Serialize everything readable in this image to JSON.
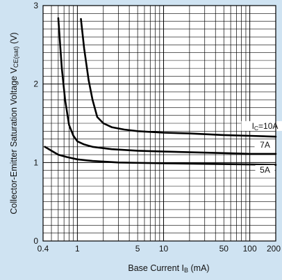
{
  "chart_data": {
    "type": "line",
    "x_scale": "log",
    "xlim": [
      0.4,
      200
    ],
    "ylim": [
      0,
      3
    ],
    "grid": true,
    "xlabel": "Base Current",
    "xlabel_symbol": "I",
    "xlabel_sub": "B",
    "xlabel_unit": " (mA)",
    "ylabel": "Collector-Emitter Saturation Voltage",
    "ylabel_symbol": "V",
    "ylabel_sub": "CE(sat)",
    "ylabel_unit": " (V)",
    "x_ticks": [
      0.4,
      1,
      5,
      10,
      50,
      100,
      200
    ],
    "x_tick_labels": [
      "0.4",
      "1",
      "5",
      "10",
      "50",
      "100",
      "200"
    ],
    "y_ticks": [
      0,
      1,
      2,
      3
    ],
    "y_tick_labels": [
      "0",
      "1",
      "2",
      "3"
    ],
    "series": [
      {
        "name": "10A",
        "label_symbol": "I",
        "label_sub": "C",
        "label_value": "=10A",
        "x": [
          1.1,
          1.2,
          1.35,
          1.5,
          1.7,
          2.0,
          2.5,
          3.5,
          5,
          10,
          20,
          50,
          100,
          200
        ],
        "y": [
          2.83,
          2.45,
          2.05,
          1.8,
          1.58,
          1.5,
          1.45,
          1.42,
          1.4,
          1.38,
          1.37,
          1.35,
          1.34,
          1.33
        ]
      },
      {
        "name": "7A",
        "label_value": "7A",
        "x": [
          0.6,
          0.66,
          0.72,
          0.8,
          0.9,
          1.0,
          1.2,
          1.5,
          2.5,
          5,
          10,
          50,
          100,
          200
        ],
        "y": [
          2.84,
          2.2,
          1.8,
          1.48,
          1.34,
          1.27,
          1.23,
          1.2,
          1.17,
          1.15,
          1.14,
          1.12,
          1.11,
          1.11
        ]
      },
      {
        "name": "5A",
        "label_value": "5A",
        "x": [
          0.42,
          0.5,
          0.6,
          0.75,
          1.0,
          1.5,
          3,
          10,
          50,
          100,
          200
        ],
        "y": [
          1.2,
          1.15,
          1.1,
          1.07,
          1.04,
          1.02,
          1.0,
          0.99,
          0.98,
          0.975,
          0.97
        ]
      }
    ]
  }
}
